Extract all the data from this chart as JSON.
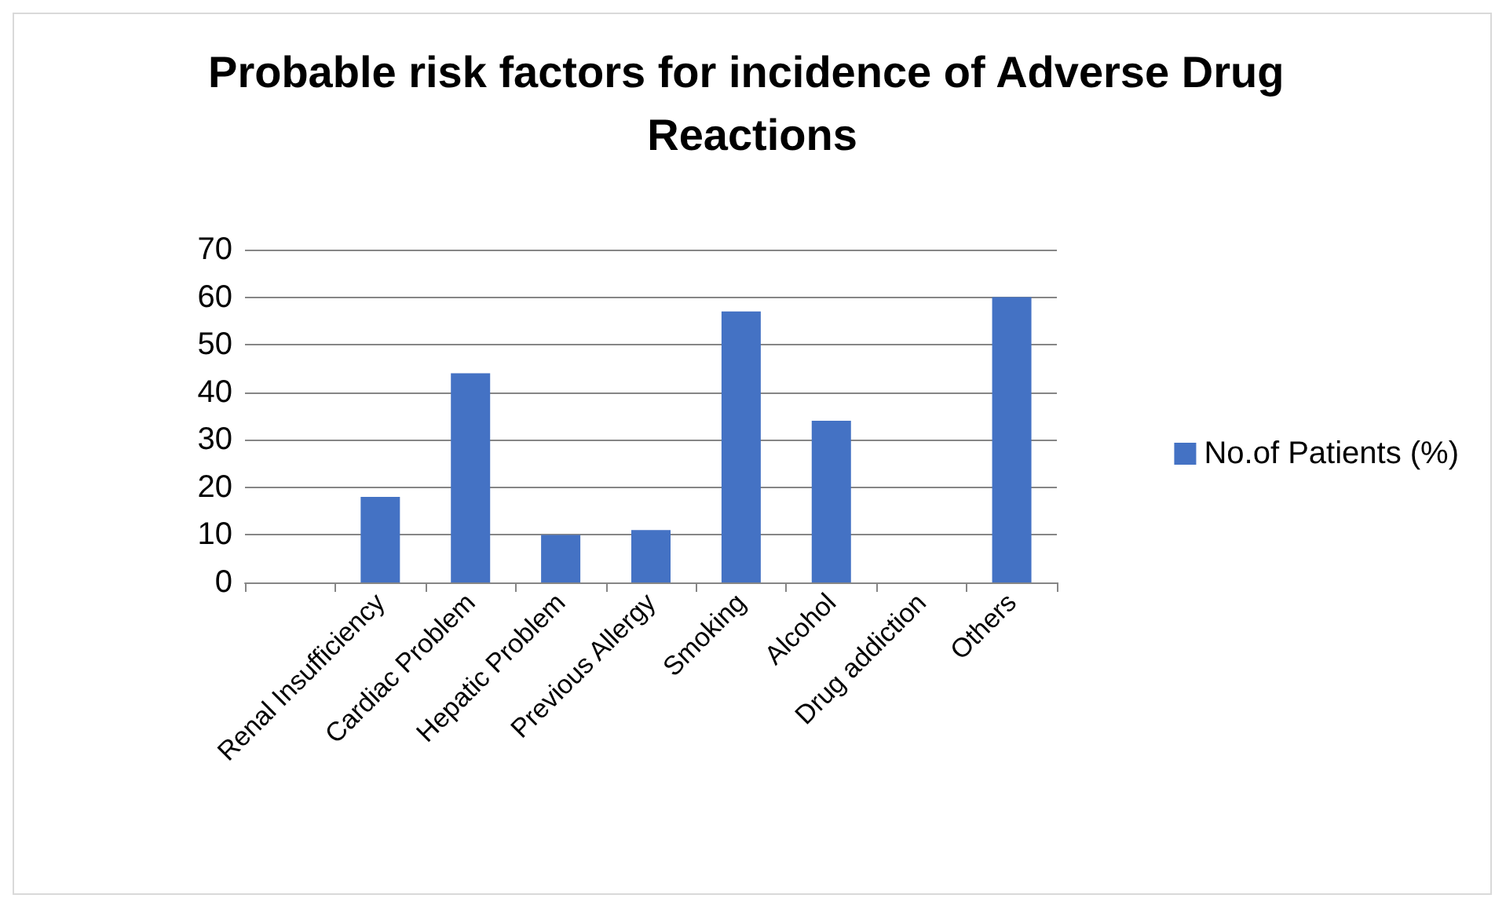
{
  "chart_data": {
    "type": "bar",
    "title": "Probable risk factors for incidence of Adverse Drug Reactions",
    "categories": [
      null,
      "Renal Insufficiency",
      "Cardiac Problem",
      "Hepatic Problem",
      "Previous Allergy",
      "Smoking",
      "Alcohol",
      "Drug addiction",
      "Others"
    ],
    "series": [
      {
        "name": "No.of Patients (%)",
        "color": "#4472c4",
        "values": [
          null,
          18,
          44,
          10,
          11,
          57,
          34,
          0,
          60
        ]
      }
    ],
    "ylim": [
      0,
      70
    ],
    "yticks": [
      0,
      10,
      20,
      30,
      40,
      50,
      60,
      70
    ],
    "grid": "y",
    "legend": "right"
  }
}
